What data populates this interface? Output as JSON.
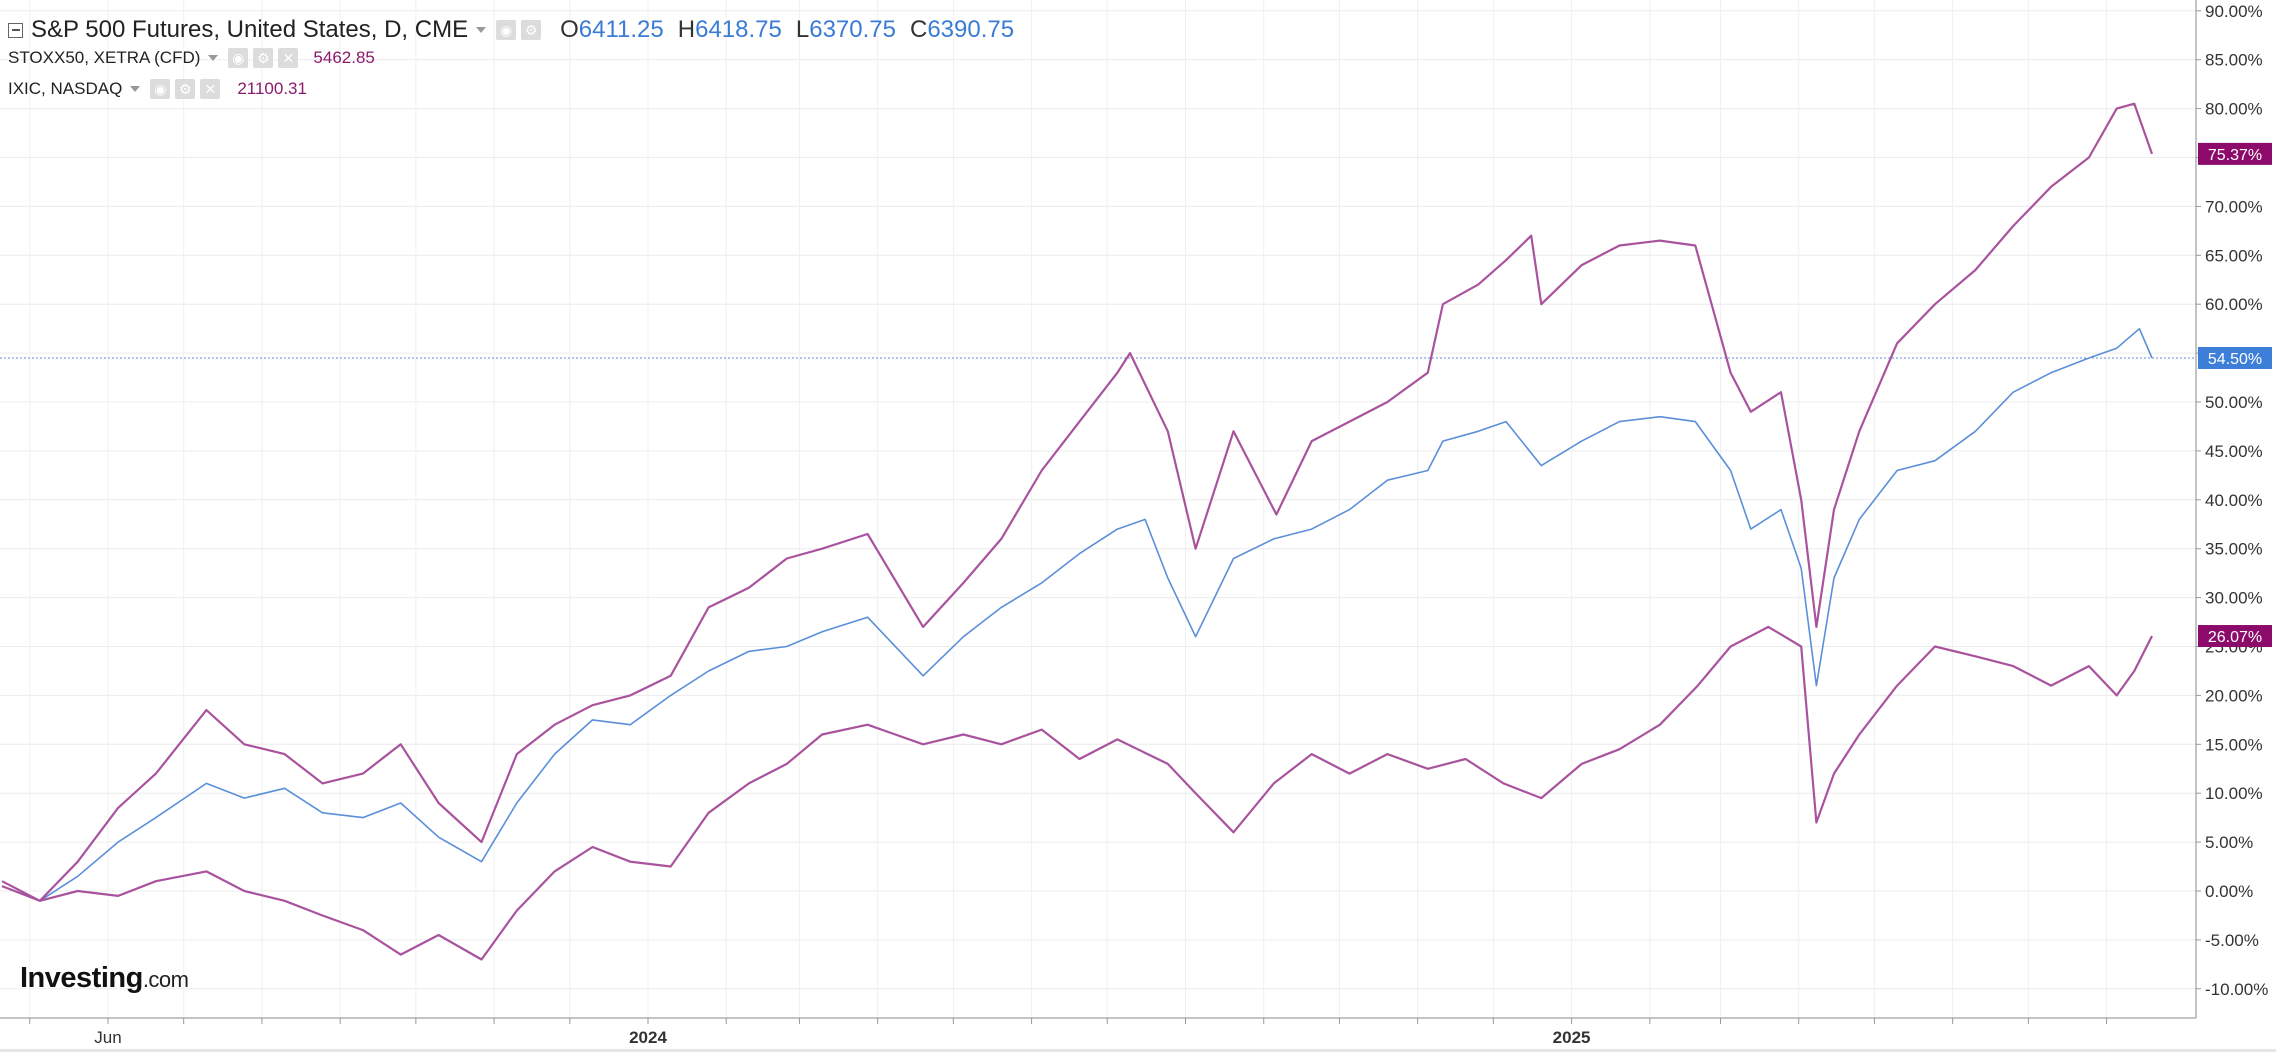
{
  "legend": {
    "main": {
      "name": "S&P 500 Futures, United States, D, CME",
      "open_label": "O",
      "open": "6411.25",
      "high_label": "H",
      "high": "6418.75",
      "low_label": "L",
      "low": "6370.75",
      "close_label": "C",
      "close": "6390.75"
    },
    "compare1": {
      "name": "STOXX50, XETRA (CFD)",
      "value": "5462.85",
      "color": "#8b1a6b"
    },
    "compare2": {
      "name": "IXIC, NASDAQ",
      "value": "21100.31",
      "color": "#8b1a6b"
    }
  },
  "logo": {
    "main": "Investing",
    "suffix": ".com"
  },
  "icons": [
    "collapse-icon",
    "dropdown-caret-icon",
    "eye-icon",
    "settings-icon",
    "close-icon"
  ],
  "colors": {
    "spx": "#5b8fd9",
    "compare": "#a9539e",
    "label_purple": "#8b0a6a",
    "label_blue": "#3d7fd8",
    "grid": "#ececec"
  },
  "chart_data": {
    "type": "line",
    "ylim": [
      -12,
      90
    ],
    "y_unit": "%",
    "yticks": [
      "90.00%",
      "85.00%",
      "80.00%",
      "75.00%",
      "70.00%",
      "65.00%",
      "60.00%",
      "55.00%",
      "50.00%",
      "45.00%",
      "40.00%",
      "35.00%",
      "30.00%",
      "25.00%",
      "20.00%",
      "15.00%",
      "10.00%",
      "5.00%",
      "0.00%",
      "-5.00%",
      "-10.00%"
    ],
    "xlim": [
      "2023-04-20",
      "2025-08-19"
    ],
    "xticks": [
      {
        "label": "Jun",
        "date": "2023-06-01",
        "bold": false
      },
      {
        "label": "2024",
        "date": "2024-01-01",
        "bold": true
      },
      {
        "label": "2025",
        "date": "2025-01-01",
        "bold": true
      }
    ],
    "series": [
      {
        "key": "spx",
        "current_label": "54.50%",
        "current": 54.5,
        "x": [
          "2023-04-20",
          "2023-05-05",
          "2023-05-20",
          "2023-06-05",
          "2023-06-20",
          "2023-07-10",
          "2023-07-25",
          "2023-08-10",
          "2023-08-25",
          "2023-09-10",
          "2023-09-25",
          "2023-10-10",
          "2023-10-27",
          "2023-11-10",
          "2023-11-25",
          "2023-12-10",
          "2023-12-25",
          "2024-01-10",
          "2024-01-25",
          "2024-02-10",
          "2024-02-25",
          "2024-03-10",
          "2024-03-28",
          "2024-04-19",
          "2024-05-05",
          "2024-05-20",
          "2024-06-05",
          "2024-06-20",
          "2024-07-05",
          "2024-07-16",
          "2024-07-25",
          "2024-08-05",
          "2024-08-20",
          "2024-09-05",
          "2024-09-20",
          "2024-10-05",
          "2024-10-20",
          "2024-11-05",
          "2024-11-11",
          "2024-11-25",
          "2024-12-06",
          "2024-12-20",
          "2025-01-05",
          "2025-01-20",
          "2025-02-05",
          "2025-02-19",
          "2025-03-05",
          "2025-03-13",
          "2025-03-25",
          "2025-04-02",
          "2025-04-08",
          "2025-04-15",
          "2025-04-25",
          "2025-05-10",
          "2025-05-25",
          "2025-06-10",
          "2025-06-25",
          "2025-07-10",
          "2025-07-25",
          "2025-08-05",
          "2025-08-14",
          "2025-08-19"
        ],
        "y": [
          0.5,
          -1.0,
          1.5,
          5.0,
          7.5,
          11.0,
          9.5,
          10.5,
          8.0,
          7.5,
          9.0,
          5.5,
          3.0,
          9.0,
          14.0,
          17.5,
          17.0,
          20.0,
          22.5,
          24.5,
          25.0,
          26.5,
          28.0,
          22.0,
          26.0,
          29.0,
          31.5,
          34.5,
          37.0,
          38.0,
          32.0,
          26.0,
          34.0,
          36.0,
          37.0,
          39.0,
          42.0,
          43.0,
          46.0,
          47.0,
          48.0,
          43.5,
          46.0,
          48.0,
          48.5,
          48.0,
          43.0,
          37.0,
          39.0,
          33.0,
          21.0,
          32.0,
          38.0,
          43.0,
          44.0,
          47.0,
          51.0,
          53.0,
          54.5,
          55.5,
          57.5,
          54.5
        ]
      },
      {
        "key": "ixic",
        "current_label": "75.37%",
        "current": 75.37,
        "x": [
          "2023-04-20",
          "2023-05-05",
          "2023-05-20",
          "2023-06-05",
          "2023-06-20",
          "2023-07-10",
          "2023-07-25",
          "2023-08-10",
          "2023-08-25",
          "2023-09-10",
          "2023-09-25",
          "2023-10-10",
          "2023-10-27",
          "2023-11-10",
          "2023-11-25",
          "2023-12-10",
          "2023-12-25",
          "2024-01-10",
          "2024-01-25",
          "2024-02-10",
          "2024-02-25",
          "2024-03-10",
          "2024-03-28",
          "2024-04-19",
          "2024-05-05",
          "2024-05-20",
          "2024-06-05",
          "2024-06-20",
          "2024-07-05",
          "2024-07-10",
          "2024-07-25",
          "2024-08-05",
          "2024-08-20",
          "2024-09-06",
          "2024-09-20",
          "2024-10-05",
          "2024-10-20",
          "2024-11-05",
          "2024-11-11",
          "2024-11-25",
          "2024-12-06",
          "2024-12-16",
          "2024-12-20",
          "2025-01-05",
          "2025-01-20",
          "2025-02-05",
          "2025-02-19",
          "2025-03-05",
          "2025-03-13",
          "2025-03-25",
          "2025-04-02",
          "2025-04-08",
          "2025-04-15",
          "2025-04-25",
          "2025-05-10",
          "2025-05-25",
          "2025-06-10",
          "2025-06-25",
          "2025-07-10",
          "2025-07-25",
          "2025-08-05",
          "2025-08-12",
          "2025-08-19"
        ],
        "y": [
          0.5,
          -1.0,
          3.0,
          8.5,
          12.0,
          18.5,
          15.0,
          14.0,
          11.0,
          12.0,
          15.0,
          9.0,
          5.0,
          14.0,
          17.0,
          19.0,
          20.0,
          22.0,
          29.0,
          31.0,
          34.0,
          35.0,
          36.5,
          27.0,
          31.5,
          36.0,
          43.0,
          48.0,
          53.0,
          55.0,
          47.0,
          35.0,
          47.0,
          38.5,
          46.0,
          48.0,
          50.0,
          53.0,
          60.0,
          62.0,
          64.5,
          67.0,
          60.0,
          64.0,
          66.0,
          66.5,
          66.0,
          53.0,
          49.0,
          51.0,
          40.0,
          27.0,
          39.0,
          47.0,
          56.0,
          60.0,
          63.5,
          68.0,
          72.0,
          75.0,
          80.0,
          80.5,
          75.37
        ]
      },
      {
        "key": "stoxx50",
        "current_label": "26.07%",
        "current": 26.07,
        "x": [
          "2023-04-20",
          "2023-05-05",
          "2023-05-20",
          "2023-06-05",
          "2023-06-20",
          "2023-07-10",
          "2023-07-25",
          "2023-08-10",
          "2023-08-25",
          "2023-09-10",
          "2023-09-25",
          "2023-10-10",
          "2023-10-27",
          "2023-11-10",
          "2023-11-25",
          "2023-12-10",
          "2023-12-25",
          "2024-01-10",
          "2024-01-25",
          "2024-02-10",
          "2024-02-25",
          "2024-03-10",
          "2024-03-28",
          "2024-04-19",
          "2024-05-05",
          "2024-05-20",
          "2024-06-05",
          "2024-06-20",
          "2024-07-05",
          "2024-07-25",
          "2024-08-05",
          "2024-08-20",
          "2024-09-05",
          "2024-09-20",
          "2024-10-05",
          "2024-10-20",
          "2024-11-05",
          "2024-11-20",
          "2024-12-05",
          "2024-12-20",
          "2025-01-05",
          "2025-01-20",
          "2025-02-05",
          "2025-02-20",
          "2025-03-05",
          "2025-03-20",
          "2025-04-02",
          "2025-04-08",
          "2025-04-15",
          "2025-04-25",
          "2025-05-10",
          "2025-05-25",
          "2025-06-10",
          "2025-06-25",
          "2025-07-10",
          "2025-07-25",
          "2025-08-05",
          "2025-08-12",
          "2025-08-19"
        ],
        "y": [
          1.0,
          -1.0,
          0.0,
          -0.5,
          1.0,
          2.0,
          0.0,
          -1.0,
          -2.5,
          -4.0,
          -6.5,
          -4.5,
          -7.0,
          -2.0,
          2.0,
          4.5,
          3.0,
          2.5,
          8.0,
          11.0,
          13.0,
          16.0,
          17.0,
          15.0,
          16.0,
          15.0,
          16.5,
          13.5,
          15.5,
          13.0,
          10.0,
          6.0,
          11.0,
          14.0,
          12.0,
          14.0,
          12.5,
          13.5,
          11.0,
          9.5,
          13.0,
          14.5,
          17.0,
          21.0,
          25.0,
          27.0,
          25.0,
          7.0,
          12.0,
          16.0,
          21.0,
          25.0,
          24.0,
          23.0,
          21.0,
          23.0,
          20.0,
          22.5,
          26.07
        ]
      }
    ]
  }
}
